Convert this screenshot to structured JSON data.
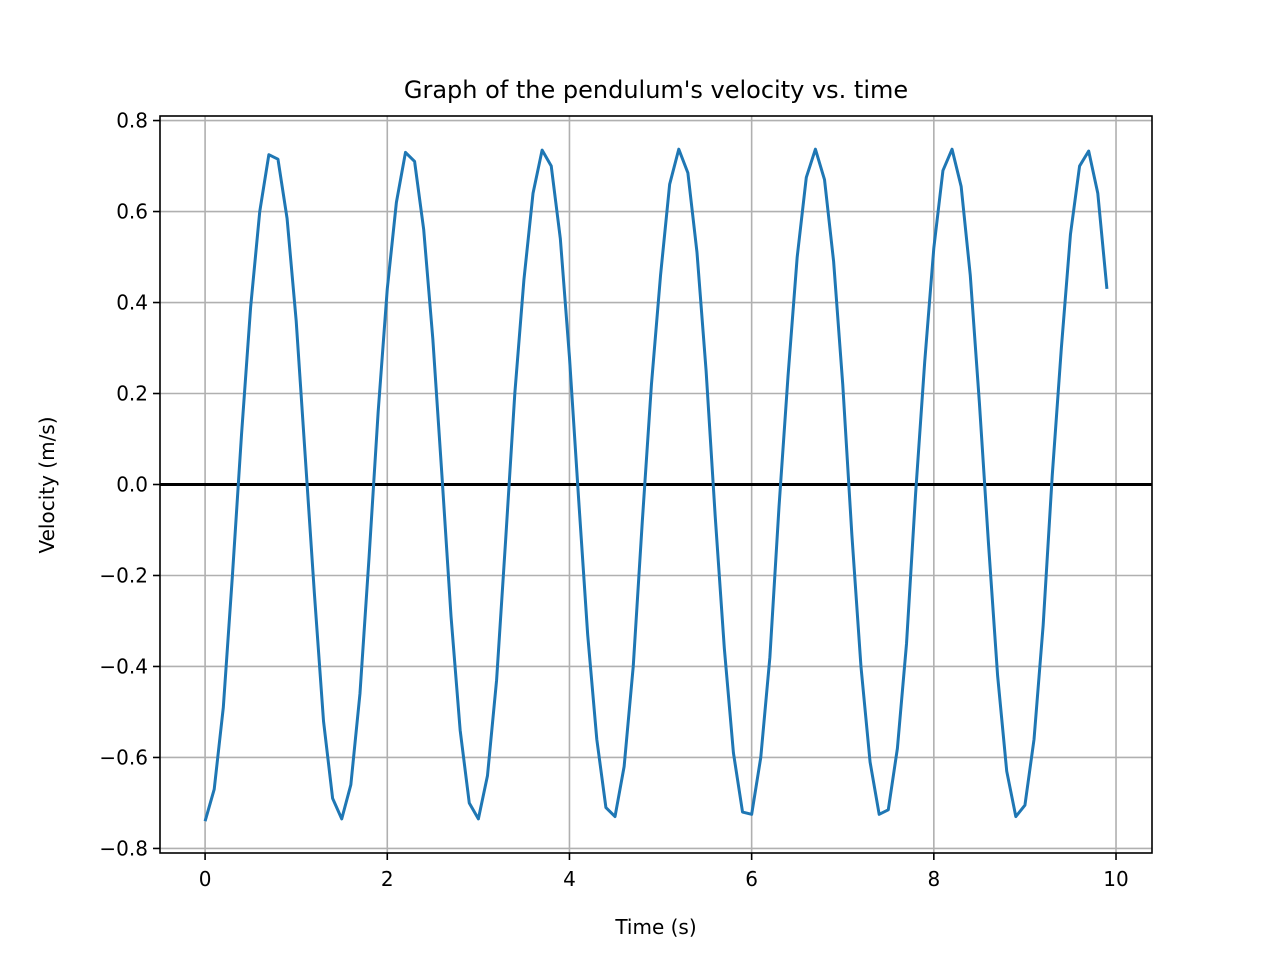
{
  "chart_data": {
    "type": "line",
    "title": "Graph of the pendulum's velocity vs. time",
    "xlabel": "Time (s)",
    "ylabel": "Velocity (m/s)",
    "xlim": [
      -0.495,
      10.395
    ],
    "ylim": [
      -0.81,
      0.81
    ],
    "xticks": [
      0,
      2,
      4,
      6,
      8,
      10
    ],
    "xtick_labels": [
      "0",
      "2",
      "4",
      "6",
      "8",
      "10"
    ],
    "yticks": [
      -0.8,
      -0.6,
      -0.4,
      -0.2,
      0.0,
      0.2,
      0.4,
      0.6,
      0.8
    ],
    "ytick_labels": [
      "−0.8",
      "−0.6",
      "−0.4",
      "−0.2",
      "0.0",
      "0.2",
      "0.4",
      "0.6",
      "0.8"
    ],
    "grid": true,
    "reference_line": {
      "y": 0,
      "color": "#000000"
    },
    "series": [
      {
        "color": "#1f77b4",
        "x": [
          0.0,
          0.1,
          0.2,
          0.3,
          0.4,
          0.5,
          0.6,
          0.7,
          0.8,
          0.9,
          1.0,
          1.1,
          1.2,
          1.3,
          1.4,
          1.5,
          1.6,
          1.7,
          1.8,
          1.9,
          2.0,
          2.1,
          2.2,
          2.3,
          2.4,
          2.5,
          2.6,
          2.7,
          2.8,
          2.9,
          3.0,
          3.1,
          3.2,
          3.3,
          3.4,
          3.5,
          3.6,
          3.7,
          3.8,
          3.9,
          4.0,
          4.1,
          4.2,
          4.3,
          4.4,
          4.5,
          4.6,
          4.7,
          4.8,
          4.9,
          5.0,
          5.1,
          5.2,
          5.3,
          5.4,
          5.5,
          5.6,
          5.7,
          5.8,
          5.9,
          6.0,
          6.1,
          6.2,
          6.3,
          6.4,
          6.5,
          6.6,
          6.7,
          6.8,
          6.9,
          7.0,
          7.1,
          7.2,
          7.3,
          7.4,
          7.5,
          7.6,
          7.7,
          7.8,
          7.9,
          8.0,
          8.1,
          8.2,
          8.3,
          8.4,
          8.5,
          8.6,
          8.7,
          8.8,
          8.9,
          9.0,
          9.1,
          9.2,
          9.3,
          9.4,
          9.5,
          9.6,
          9.7,
          9.8,
          9.9
        ],
        "y": [
          -0.74,
          -0.67,
          -0.49,
          -0.2,
          0.11,
          0.39,
          0.6,
          0.725,
          0.715,
          0.585,
          0.36,
          0.06,
          -0.24,
          -0.52,
          -0.69,
          -0.735,
          -0.66,
          -0.46,
          -0.16,
          0.16,
          0.43,
          0.62,
          0.73,
          0.71,
          0.56,
          0.32,
          0.02,
          -0.29,
          -0.54,
          -0.7,
          -0.735,
          -0.64,
          -0.43,
          -0.12,
          0.2,
          0.45,
          0.64,
          0.735,
          0.7,
          0.54,
          0.28,
          -0.03,
          -0.33,
          -0.56,
          -0.71,
          -0.73,
          -0.62,
          -0.4,
          -0.08,
          0.22,
          0.46,
          0.66,
          0.737,
          0.685,
          0.51,
          0.25,
          -0.07,
          -0.36,
          -0.59,
          -0.72,
          -0.725,
          -0.6,
          -0.38,
          -0.05,
          0.24,
          0.5,
          0.675,
          0.737,
          0.67,
          0.49,
          0.22,
          -0.11,
          -0.4,
          -0.61,
          -0.725,
          -0.715,
          -0.58,
          -0.35,
          -0.02,
          0.27,
          0.52,
          0.69,
          0.737,
          0.655,
          0.46,
          0.18,
          -0.13,
          -0.42,
          -0.63,
          -0.73,
          -0.705,
          -0.56,
          -0.31,
          0.02,
          0.3,
          0.55,
          0.7,
          0.733,
          0.64,
          0.43
        ]
      }
    ]
  }
}
